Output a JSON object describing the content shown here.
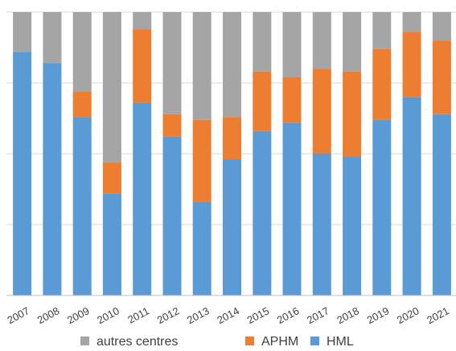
{
  "chart_data": {
    "type": "bar",
    "stacked": true,
    "normalized": true,
    "ylim": [
      0,
      100
    ],
    "grid": true,
    "legend_position": "bottom",
    "categories": [
      "2007",
      "2008",
      "2009",
      "2010",
      "2011",
      "2012",
      "2013",
      "2014",
      "2015",
      "2016",
      "2017",
      "2018",
      "2019",
      "2020",
      "2021"
    ],
    "series": [
      {
        "name": "HML",
        "color": "#5b9bd5",
        "values": [
          86,
          82,
          63,
          36,
          68,
          56,
          33,
          48,
          58,
          61,
          50,
          49,
          62,
          70,
          64
        ]
      },
      {
        "name": "APHM",
        "color": "#ed7d31",
        "values": [
          0,
          0,
          9,
          11,
          26,
          8,
          29,
          15,
          21,
          16,
          30,
          30,
          25,
          23,
          26
        ]
      },
      {
        "name": "autres centres",
        "color": "#a5a5a5",
        "values": [
          14,
          18,
          28,
          53,
          6,
          36,
          38,
          37,
          21,
          23,
          20,
          21,
          13,
          7,
          10
        ]
      }
    ],
    "legend_order": [
      "autres centres",
      "APHM",
      "HML"
    ]
  }
}
